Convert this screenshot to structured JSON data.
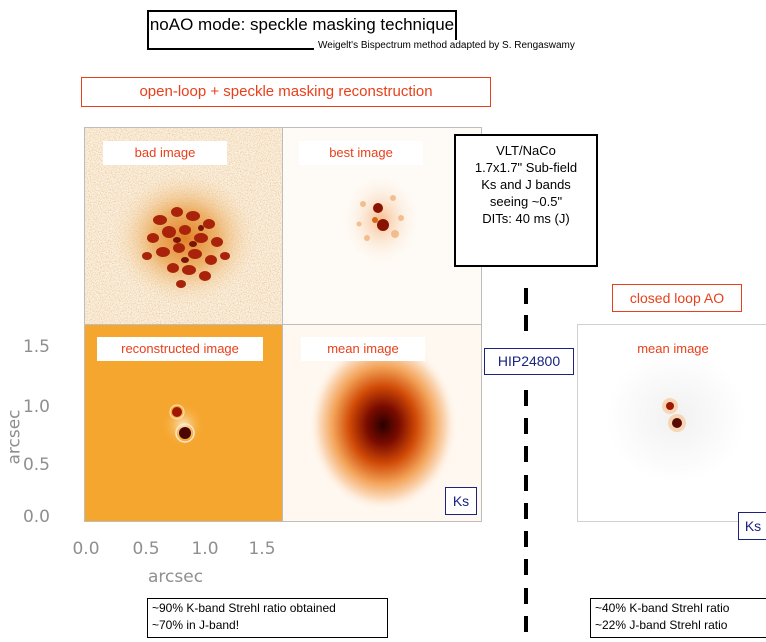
{
  "title": "noAO mode: speckle masking technique",
  "subtitle": "Weigelt's Bispectrum method adapted by S. Rengaswamy",
  "open_loop_label": "open-loop + speckle masking reconstruction",
  "panels": {
    "bad": "bad image",
    "best": "best image",
    "reconstructed": "reconstructed image",
    "mean": "mean image",
    "band": "Ks"
  },
  "info": {
    "line1": "VLT/NaCo",
    "line2": "1.7x1.7\" Sub-field",
    "line3": "Ks and J bands",
    "line4": "seeing ~0.5\"",
    "line5": "DITs: 40 ms (J)"
  },
  "target": "HIP24800",
  "closed_loop": {
    "label": "closed loop AO",
    "panel": "mean image",
    "band": "Ks"
  },
  "axes": {
    "y_ticks": [
      "1.5",
      "1.0",
      "0.5",
      "0.0"
    ],
    "x_ticks": [
      "0.0",
      "0.5",
      "1.0",
      "1.5"
    ],
    "xlabel": "arcsec",
    "ylabel": "arcsec"
  },
  "strehl_left": {
    "line1": "~90% K-band Strehl ratio obtained",
    "line2": "~70% in J-band!"
  },
  "strehl_right": {
    "line1": "~40% K-band Strehl ratio",
    "line2": "~22% J-band Strehl ratio"
  }
}
